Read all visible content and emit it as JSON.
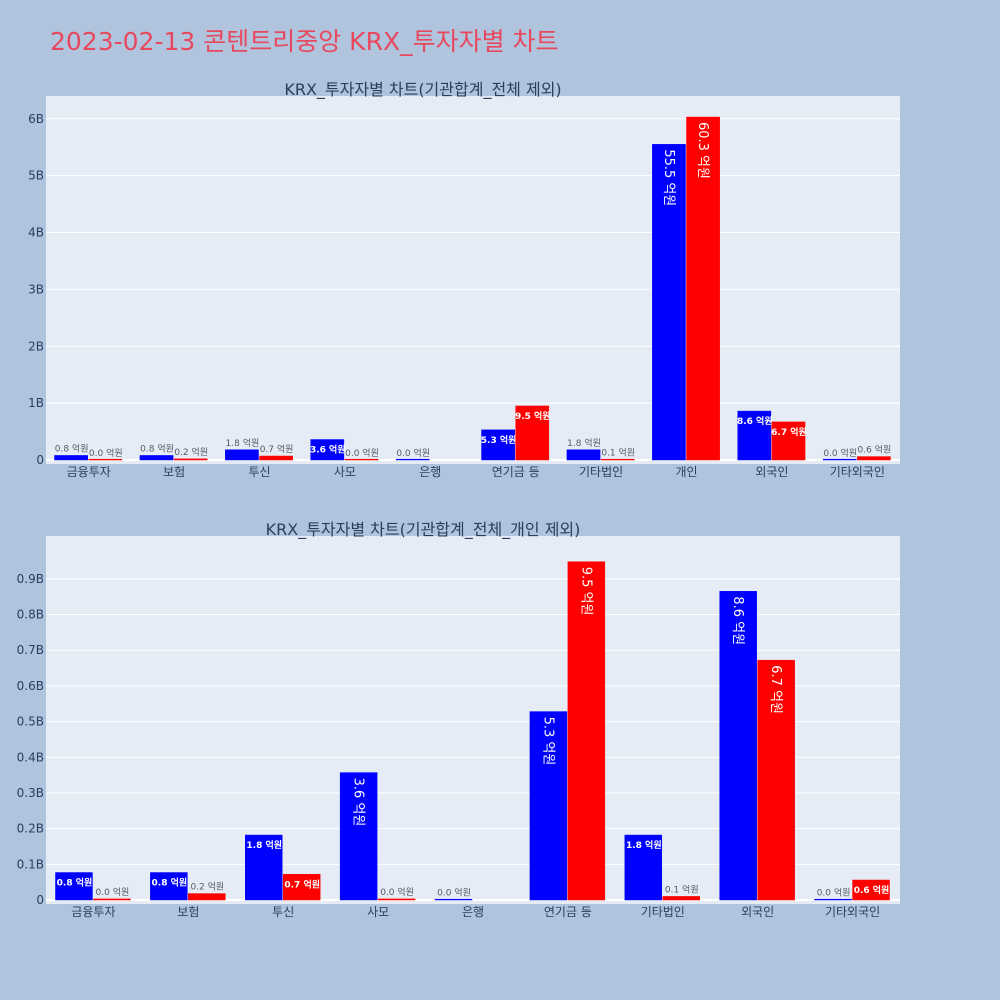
{
  "page": {
    "title": "2023-02-13 콘텐트리중앙 KRX_투자자별 차트"
  },
  "colors": {
    "background": "#b0c4de",
    "plot_bg": "#e5ecf6",
    "title": "#e8485e",
    "series_a": "#0000ff",
    "series_b": "#ff0000",
    "text": "#2a3f5f"
  },
  "chart_data": [
    {
      "type": "bar",
      "title": "KRX_투자자별 차트(기관합계_전체 제외)",
      "categories": [
        "금융투자",
        "보험",
        "투신",
        "사모",
        "은행",
        "연기금 등",
        "기타법인",
        "개인",
        "외국인",
        "기타외국인"
      ],
      "ylim": [
        0,
        6400000000
      ],
      "yticks": [
        0,
        1000000000,
        2000000000,
        3000000000,
        4000000000,
        5000000000,
        6000000000
      ],
      "ytick_labels": [
        "0",
        "1B",
        "2B",
        "3B",
        "4B",
        "5B",
        "6B"
      ],
      "grid": true,
      "series": [
        {
          "color": "#0000ff",
          "values": [
            80000000,
            80000000,
            180000000,
            360000000,
            0,
            530000000,
            180000000,
            5550000000,
            860000000,
            0
          ],
          "labels": [
            "0.8 억원",
            "0.8 억원",
            "1.8 억원",
            "3.6 억원",
            "0.0 억원",
            "5.3 억원",
            "1.8 억원",
            "55.5 억원",
            "8.6 억원",
            "0.0 억원"
          ]
        },
        {
          "color": "#ff0000",
          "values": [
            2000000,
            20000000,
            70000000,
            2000000,
            null,
            950000000,
            10000000,
            6030000000,
            670000000,
            60000000
          ],
          "labels": [
            "0.0 억원",
            "0.2 억원",
            "0.7 억원",
            "0.0 억원",
            "",
            "9.5 억원",
            "0.1 억원",
            "60.3 억원",
            "6.7 억원",
            "0.6 억원"
          ]
        }
      ]
    },
    {
      "type": "bar",
      "title": "KRX_투자자별 차트(기관합계_전체_개인 제외)",
      "categories": [
        "금융투자",
        "보험",
        "투신",
        "사모",
        "은행",
        "연기금 등",
        "기타법인",
        "외국인",
        "기타외국인"
      ],
      "ylim": [
        0,
        1020000000
      ],
      "yticks": [
        0,
        100000000,
        200000000,
        300000000,
        400000000,
        500000000,
        600000000,
        700000000,
        800000000,
        900000000
      ],
      "ytick_labels": [
        "0",
        "0.1B",
        "0.2B",
        "0.3B",
        "0.4B",
        "0.5B",
        "0.6B",
        "0.7B",
        "0.8B",
        "0.9B"
      ],
      "grid": true,
      "series": [
        {
          "color": "#0000ff",
          "values": [
            77000000,
            77000000,
            182000000,
            357000000,
            1000000,
            528000000,
            182000000,
            865000000,
            1000000
          ],
          "labels": [
            "0.8 억원",
            "0.8 억원",
            "1.8 억원",
            "3.6 억원",
            "0.0 억원",
            "5.3 억원",
            "1.8 억원",
            "8.6 억원",
            "0.0 억원"
          ]
        },
        {
          "color": "#ff0000",
          "values": [
            3000000,
            18000000,
            72000000,
            3000000,
            null,
            948000000,
            10000000,
            672000000,
            56000000
          ],
          "labels": [
            "0.0 억원",
            "0.2 억원",
            "0.7 억원",
            "0.0 억원",
            "",
            "9.5 억원",
            "0.1 억원",
            "6.7 억원",
            "0.6 억원"
          ]
        }
      ]
    }
  ]
}
